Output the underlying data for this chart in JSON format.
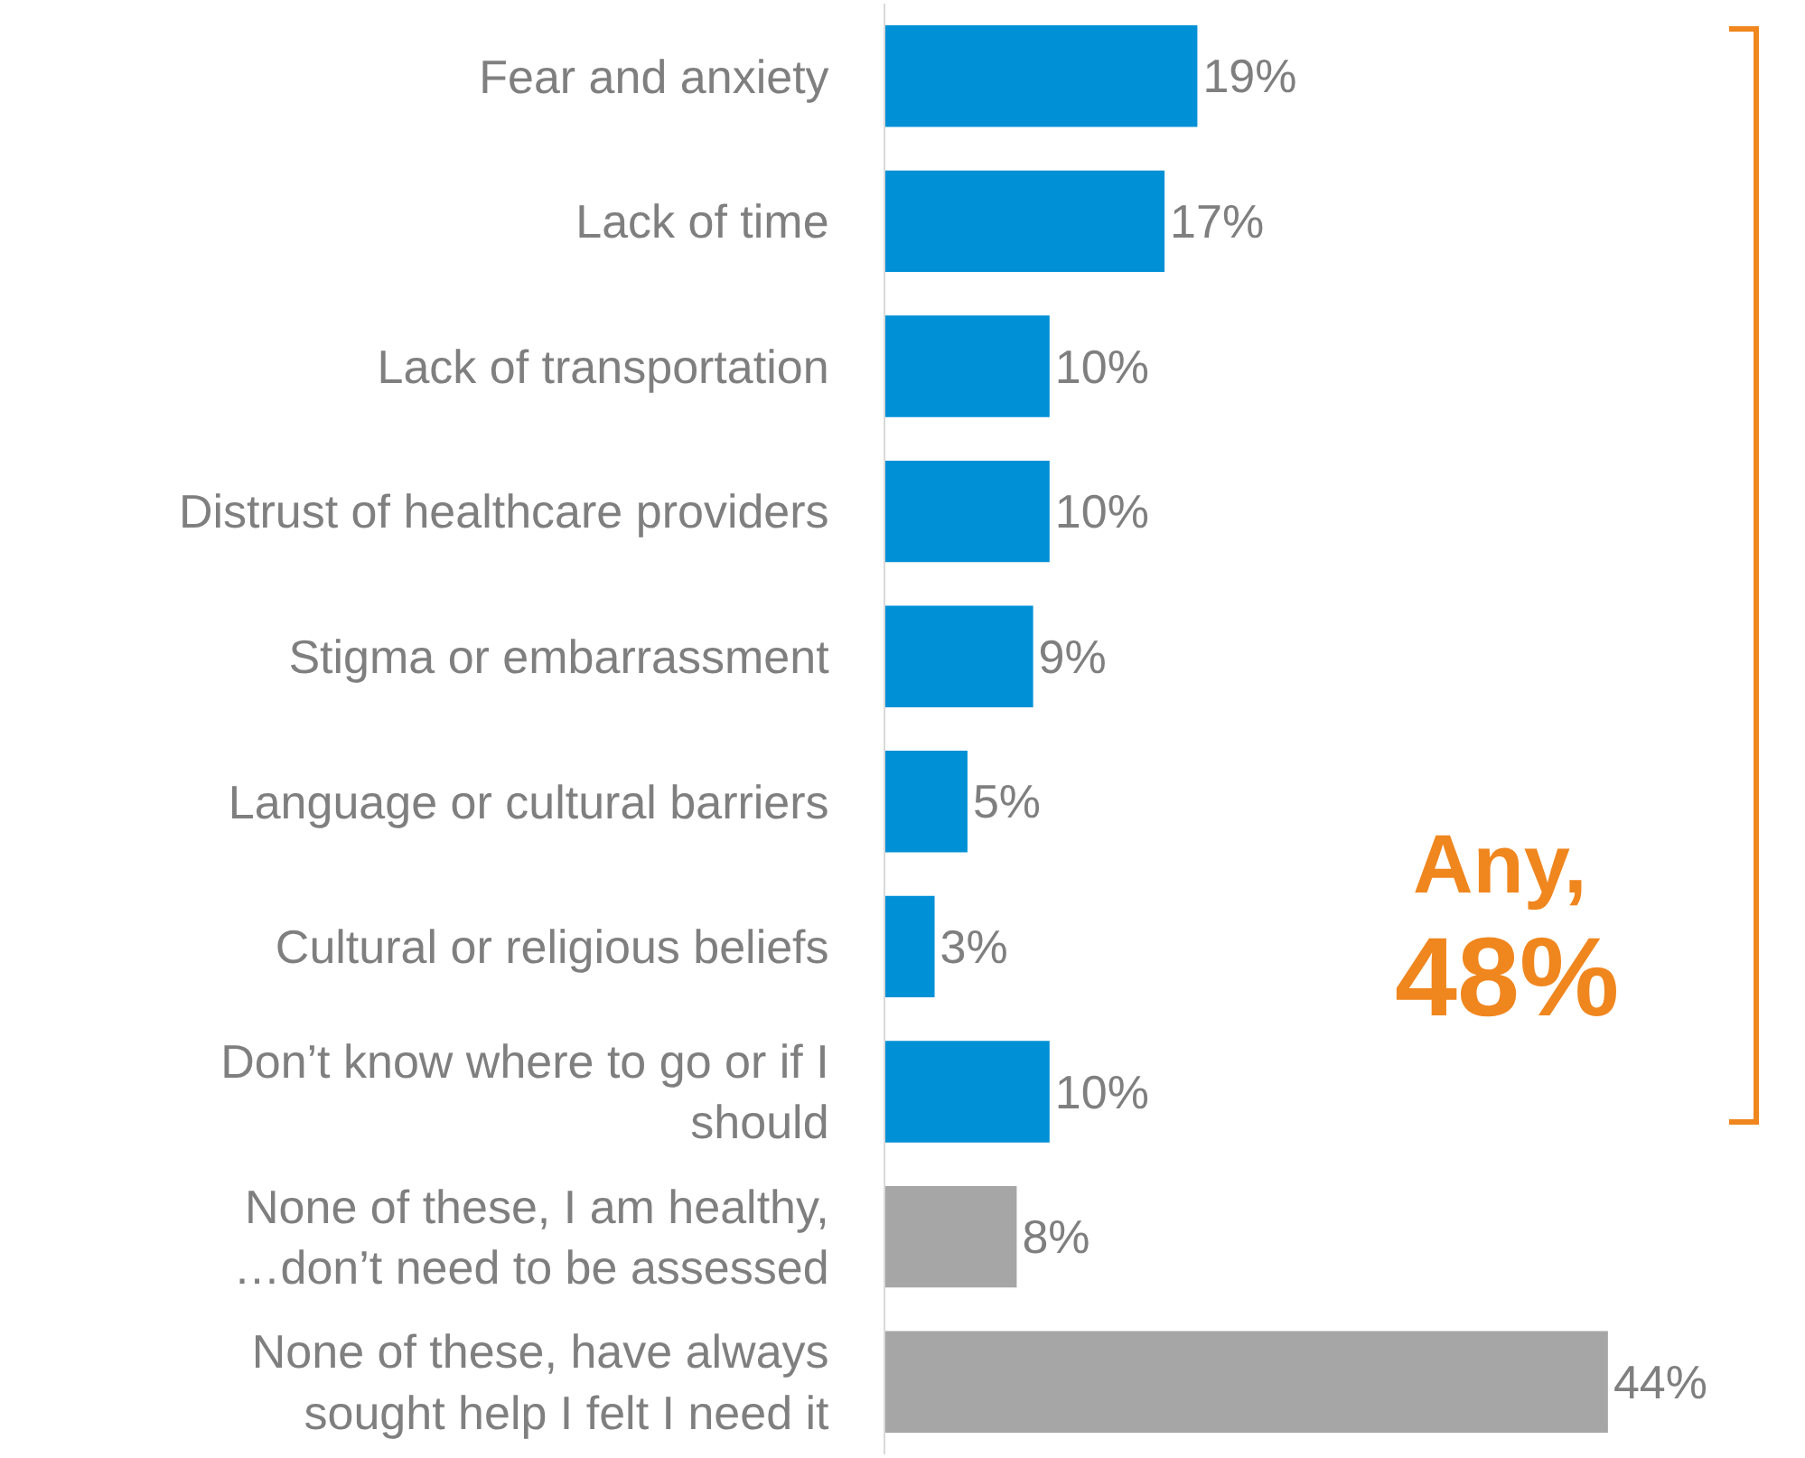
{
  "chart_data": {
    "type": "bar",
    "orientation": "horizontal",
    "categories": [
      "Fear and anxiety",
      "Lack of time",
      "Lack of transportation",
      "Distrust of healthcare providers",
      "Stigma or embarrassment",
      "Language or cultural barriers",
      "Cultural or religious beliefs",
      "Don’t know where to go or if I should",
      "None of these, I am healthy, …don’t need to be assessed",
      "None of these, have always sought help I felt I need it"
    ],
    "values": [
      19,
      17,
      10,
      10,
      9,
      5,
      3,
      10,
      8,
      44
    ],
    "value_labels": [
      "19%",
      "17%",
      "10%",
      "10%",
      "9%",
      "5%",
      "3%",
      "10%",
      "8%",
      "44%"
    ],
    "colors": [
      "#0090d6",
      "#0090d6",
      "#0090d6",
      "#0090d6",
      "#0090d6",
      "#0090d6",
      "#0090d6",
      "#0090d6",
      "#a6a6a6",
      "#a6a6a6"
    ],
    "annotations": [
      "Any,",
      "48%"
    ]
  }
}
